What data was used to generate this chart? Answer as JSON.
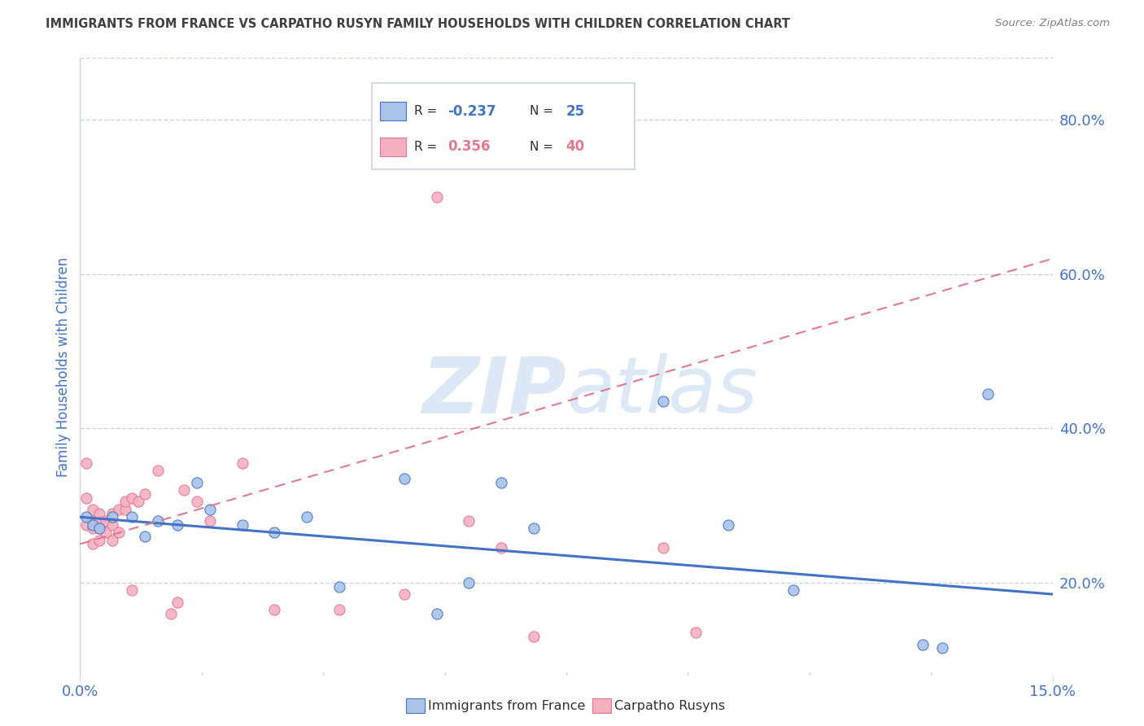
{
  "title": "IMMIGRANTS FROM FRANCE VS CARPATHO RUSYN FAMILY HOUSEHOLDS WITH CHILDREN CORRELATION CHART",
  "source": "Source: ZipAtlas.com",
  "ylabel": "Family Households with Children",
  "ytick_labels": [
    "20.0%",
    "40.0%",
    "60.0%",
    "80.0%"
  ],
  "ytick_values": [
    0.2,
    0.4,
    0.6,
    0.8
  ],
  "xlim": [
    0.0,
    0.15
  ],
  "ylim": [
    0.08,
    0.88
  ],
  "blue_label": "Immigrants from France",
  "pink_label": "Carpatho Rusyns",
  "blue_R": "-0.237",
  "blue_N": "25",
  "pink_R": "0.356",
  "pink_N": "40",
  "blue_color": "#a8c4e8",
  "pink_color": "#f5b0c0",
  "blue_line_color": "#4472c4",
  "pink_line_color": "#e07890",
  "blue_points_x": [
    0.001,
    0.002,
    0.003,
    0.005,
    0.008,
    0.01,
    0.012,
    0.015,
    0.018,
    0.02,
    0.025,
    0.03,
    0.035,
    0.04,
    0.05,
    0.055,
    0.06,
    0.065,
    0.07,
    0.09,
    0.1,
    0.11,
    0.13,
    0.133,
    0.14
  ],
  "blue_points_y": [
    0.285,
    0.275,
    0.27,
    0.285,
    0.285,
    0.26,
    0.28,
    0.275,
    0.33,
    0.295,
    0.275,
    0.265,
    0.285,
    0.195,
    0.335,
    0.16,
    0.2,
    0.33,
    0.27,
    0.435,
    0.275,
    0.19,
    0.12,
    0.115,
    0.445
  ],
  "pink_points_x": [
    0.001,
    0.001,
    0.001,
    0.002,
    0.002,
    0.002,
    0.002,
    0.003,
    0.003,
    0.003,
    0.003,
    0.004,
    0.004,
    0.005,
    0.005,
    0.005,
    0.006,
    0.006,
    0.007,
    0.007,
    0.008,
    0.008,
    0.009,
    0.01,
    0.012,
    0.014,
    0.015,
    0.016,
    0.018,
    0.02,
    0.025,
    0.03,
    0.04,
    0.05,
    0.055,
    0.06,
    0.065,
    0.09,
    0.095,
    0.07
  ],
  "pink_points_y": [
    0.355,
    0.31,
    0.275,
    0.25,
    0.27,
    0.28,
    0.295,
    0.255,
    0.27,
    0.28,
    0.29,
    0.265,
    0.28,
    0.255,
    0.275,
    0.29,
    0.265,
    0.295,
    0.295,
    0.305,
    0.19,
    0.31,
    0.305,
    0.315,
    0.345,
    0.16,
    0.175,
    0.32,
    0.305,
    0.28,
    0.355,
    0.165,
    0.165,
    0.185,
    0.7,
    0.28,
    0.245,
    0.245,
    0.135,
    0.13
  ],
  "blue_trend_x": [
    0.0,
    0.15
  ],
  "blue_trend_y": [
    0.285,
    0.185
  ],
  "pink_trend_x": [
    0.0,
    0.15
  ],
  "pink_trend_y": [
    0.25,
    0.62
  ],
  "watermark_zip": "ZIP",
  "watermark_atlas": "atlas",
  "watermark_color": "#dce8f5",
  "background_color": "#ffffff",
  "grid_color": "#c8d4e4",
  "title_color": "#404040",
  "axis_label_color": "#4472c4",
  "tick_label_color": "#4472c4",
  "source_color": "#808080"
}
